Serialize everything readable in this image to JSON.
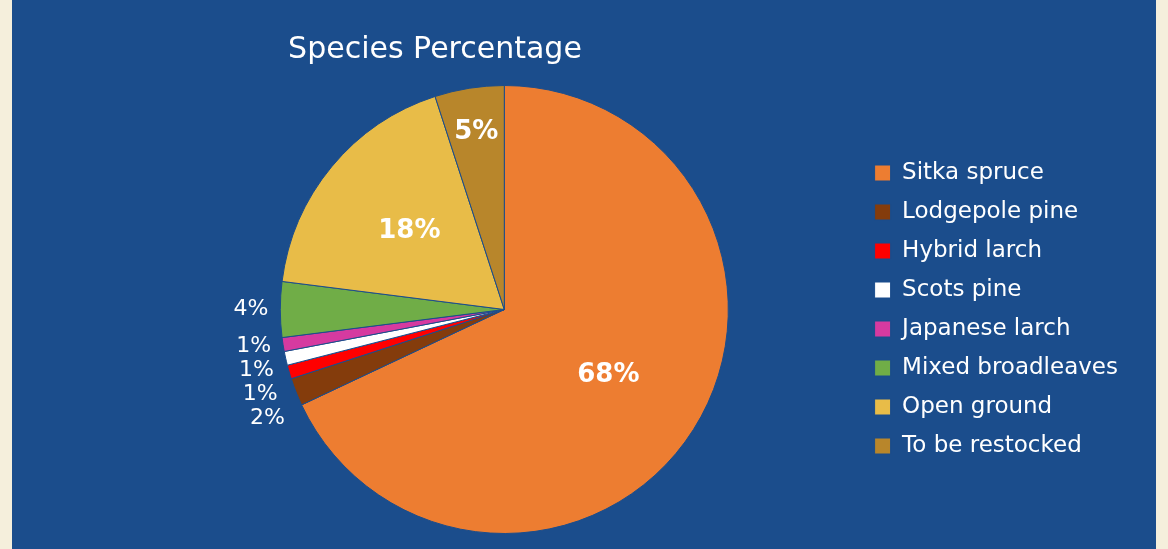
{
  "chart_data": {
    "type": "pie",
    "title": "Species Percentage",
    "categories": [
      "Sitka spruce",
      "Lodgepole pine",
      "Hybrid larch",
      "Scots pine",
      "Japanese larch",
      "Mixed broadleaves",
      "Open ground",
      "To be restocked"
    ],
    "values": [
      68,
      2,
      1,
      1,
      1,
      4,
      18,
      5
    ],
    "colors": [
      "#ed7d31",
      "#843c0c",
      "#ff0000",
      "#ffffff",
      "#d63aa0",
      "#70ad47",
      "#e8bc48",
      "#b8862b"
    ],
    "value_labels": [
      "68%",
      "2%",
      "1%",
      "1%",
      "1%",
      "4%",
      "18%",
      "5%"
    ],
    "legend": "right"
  }
}
